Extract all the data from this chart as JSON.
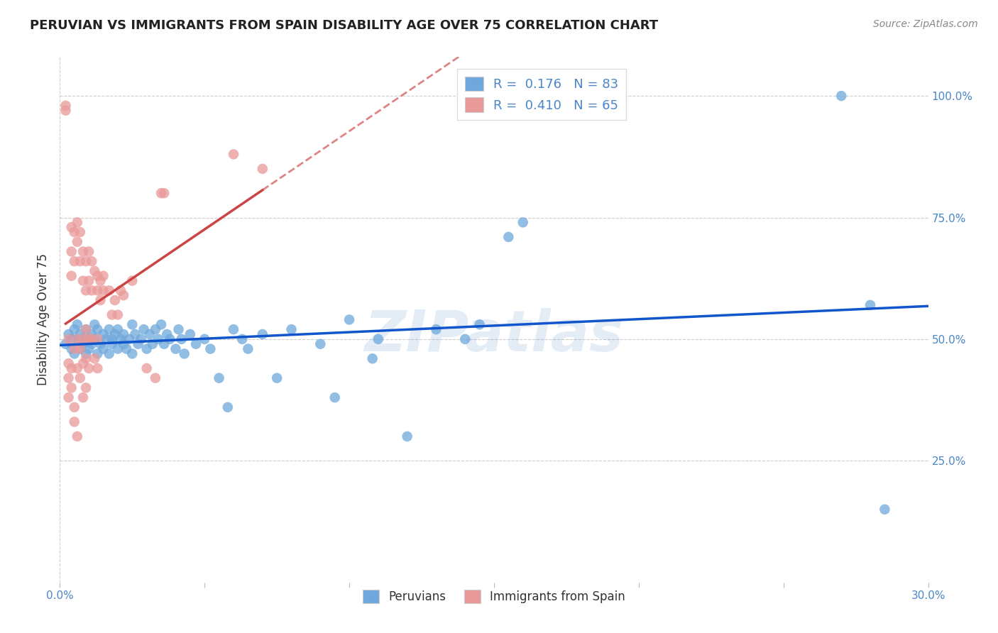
{
  "title": "PERUVIAN VS IMMIGRANTS FROM SPAIN DISABILITY AGE OVER 75 CORRELATION CHART",
  "source": "Source: ZipAtlas.com",
  "ylabel": "Disability Age Over 75",
  "xlabel_peruvians": "Peruvians",
  "xlabel_spain": "Immigrants from Spain",
  "xmin": 0.0,
  "xmax": 0.3,
  "ymin": 0.0,
  "ymax": 1.08,
  "yticks": [
    0.25,
    0.5,
    0.75,
    1.0
  ],
  "ytick_labels": [
    "25.0%",
    "50.0%",
    "75.0%",
    "100.0%"
  ],
  "xticks": [
    0.0,
    0.05,
    0.1,
    0.15,
    0.2,
    0.25,
    0.3
  ],
  "xtick_labels": [
    "0.0%",
    "",
    "",
    "",
    "",
    "",
    "30.0%"
  ],
  "blue_R": "0.176",
  "blue_N": "83",
  "pink_R": "0.410",
  "pink_N": "65",
  "blue_color": "#6fa8dc",
  "pink_color": "#ea9999",
  "blue_line_color": "#1155cc",
  "pink_line_color": "#cc4444",
  "watermark": "ZIPatlas",
  "blue_scatter": [
    [
      0.002,
      0.49
    ],
    [
      0.003,
      0.51
    ],
    [
      0.004,
      0.5
    ],
    [
      0.004,
      0.48
    ],
    [
      0.005,
      0.52
    ],
    [
      0.005,
      0.47
    ],
    [
      0.006,
      0.5
    ],
    [
      0.006,
      0.53
    ],
    [
      0.007,
      0.48
    ],
    [
      0.007,
      0.51
    ],
    [
      0.008,
      0.49
    ],
    [
      0.008,
      0.5
    ],
    [
      0.009,
      0.52
    ],
    [
      0.009,
      0.47
    ],
    [
      0.01,
      0.5
    ],
    [
      0.01,
      0.48
    ],
    [
      0.011,
      0.51
    ],
    [
      0.011,
      0.49
    ],
    [
      0.012,
      0.5
    ],
    [
      0.012,
      0.53
    ],
    [
      0.013,
      0.47
    ],
    [
      0.013,
      0.52
    ],
    [
      0.014,
      0.49
    ],
    [
      0.015,
      0.51
    ],
    [
      0.015,
      0.48
    ],
    [
      0.016,
      0.5
    ],
    [
      0.017,
      0.52
    ],
    [
      0.017,
      0.47
    ],
    [
      0.018,
      0.5
    ],
    [
      0.018,
      0.49
    ],
    [
      0.019,
      0.51
    ],
    [
      0.02,
      0.48
    ],
    [
      0.02,
      0.52
    ],
    [
      0.021,
      0.5
    ],
    [
      0.022,
      0.49
    ],
    [
      0.022,
      0.51
    ],
    [
      0.023,
      0.48
    ],
    [
      0.024,
      0.5
    ],
    [
      0.025,
      0.53
    ],
    [
      0.025,
      0.47
    ],
    [
      0.026,
      0.51
    ],
    [
      0.027,
      0.49
    ],
    [
      0.028,
      0.5
    ],
    [
      0.029,
      0.52
    ],
    [
      0.03,
      0.48
    ],
    [
      0.031,
      0.51
    ],
    [
      0.032,
      0.49
    ],
    [
      0.033,
      0.52
    ],
    [
      0.034,
      0.5
    ],
    [
      0.035,
      0.53
    ],
    [
      0.036,
      0.49
    ],
    [
      0.037,
      0.51
    ],
    [
      0.038,
      0.5
    ],
    [
      0.04,
      0.48
    ],
    [
      0.041,
      0.52
    ],
    [
      0.042,
      0.5
    ],
    [
      0.043,
      0.47
    ],
    [
      0.045,
      0.51
    ],
    [
      0.047,
      0.49
    ],
    [
      0.05,
      0.5
    ],
    [
      0.052,
      0.48
    ],
    [
      0.055,
      0.42
    ],
    [
      0.058,
      0.36
    ],
    [
      0.06,
      0.52
    ],
    [
      0.063,
      0.5
    ],
    [
      0.065,
      0.48
    ],
    [
      0.07,
      0.51
    ],
    [
      0.075,
      0.42
    ],
    [
      0.08,
      0.52
    ],
    [
      0.09,
      0.49
    ],
    [
      0.095,
      0.38
    ],
    [
      0.1,
      0.54
    ],
    [
      0.11,
      0.5
    ],
    [
      0.12,
      0.3
    ],
    [
      0.13,
      0.52
    ],
    [
      0.14,
      0.5
    ],
    [
      0.155,
      0.71
    ],
    [
      0.16,
      0.74
    ],
    [
      0.27,
      1.0
    ],
    [
      0.28,
      0.57
    ],
    [
      0.285,
      0.15
    ],
    [
      0.145,
      0.53
    ],
    [
      0.108,
      0.46
    ]
  ],
  "pink_scatter": [
    [
      0.002,
      0.97
    ],
    [
      0.002,
      0.98
    ],
    [
      0.003,
      0.45
    ],
    [
      0.003,
      0.5
    ],
    [
      0.003,
      0.42
    ],
    [
      0.003,
      0.38
    ],
    [
      0.004,
      0.73
    ],
    [
      0.004,
      0.68
    ],
    [
      0.004,
      0.63
    ],
    [
      0.004,
      0.44
    ],
    [
      0.004,
      0.4
    ],
    [
      0.005,
      0.72
    ],
    [
      0.005,
      0.66
    ],
    [
      0.005,
      0.48
    ],
    [
      0.005,
      0.36
    ],
    [
      0.005,
      0.33
    ],
    [
      0.006,
      0.74
    ],
    [
      0.006,
      0.7
    ],
    [
      0.006,
      0.5
    ],
    [
      0.006,
      0.44
    ],
    [
      0.006,
      0.3
    ],
    [
      0.007,
      0.72
    ],
    [
      0.007,
      0.66
    ],
    [
      0.007,
      0.48
    ],
    [
      0.007,
      0.42
    ],
    [
      0.008,
      0.68
    ],
    [
      0.008,
      0.62
    ],
    [
      0.008,
      0.5
    ],
    [
      0.008,
      0.45
    ],
    [
      0.008,
      0.38
    ],
    [
      0.009,
      0.66
    ],
    [
      0.009,
      0.6
    ],
    [
      0.009,
      0.52
    ],
    [
      0.009,
      0.46
    ],
    [
      0.009,
      0.4
    ],
    [
      0.01,
      0.68
    ],
    [
      0.01,
      0.62
    ],
    [
      0.01,
      0.5
    ],
    [
      0.01,
      0.44
    ],
    [
      0.011,
      0.66
    ],
    [
      0.011,
      0.6
    ],
    [
      0.011,
      0.5
    ],
    [
      0.012,
      0.64
    ],
    [
      0.012,
      0.46
    ],
    [
      0.013,
      0.63
    ],
    [
      0.013,
      0.6
    ],
    [
      0.013,
      0.5
    ],
    [
      0.013,
      0.44
    ],
    [
      0.014,
      0.62
    ],
    [
      0.014,
      0.58
    ],
    [
      0.015,
      0.63
    ],
    [
      0.015,
      0.6
    ],
    [
      0.017,
      0.6
    ],
    [
      0.018,
      0.55
    ],
    [
      0.019,
      0.58
    ],
    [
      0.02,
      0.55
    ],
    [
      0.021,
      0.6
    ],
    [
      0.022,
      0.59
    ],
    [
      0.025,
      0.62
    ],
    [
      0.03,
      0.44
    ],
    [
      0.033,
      0.42
    ],
    [
      0.035,
      0.8
    ],
    [
      0.036,
      0.8
    ],
    [
      0.06,
      0.88
    ],
    [
      0.07,
      0.85
    ]
  ]
}
